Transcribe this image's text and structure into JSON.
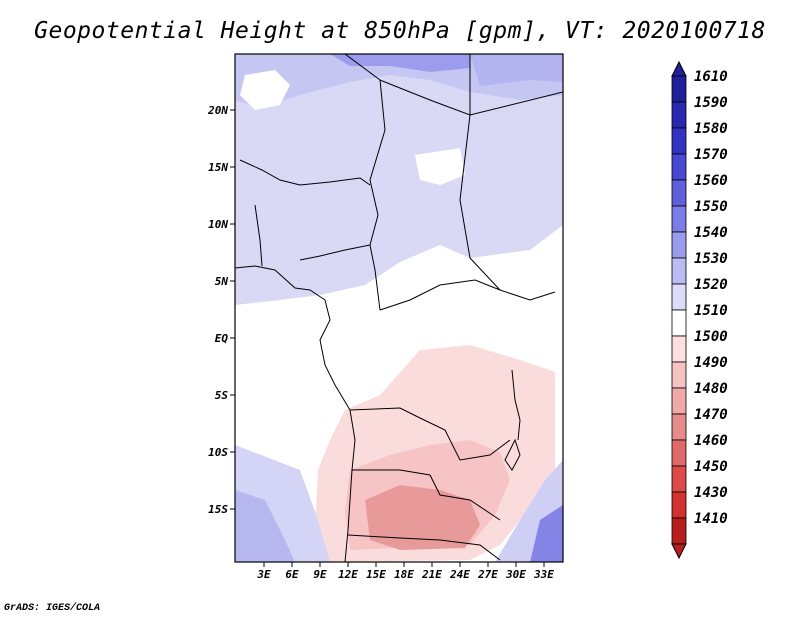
{
  "title": "Geopotential Height at 850hPa [gpm], VT: 2020100718",
  "footer": "GrADS: IGES/COLA",
  "map": {
    "lon_labels": [
      "3E",
      "6E",
      "9E",
      "12E",
      "15E",
      "18E",
      "21E",
      "24E",
      "27E",
      "30E",
      "33E"
    ],
    "lat_labels": [
      "20N",
      "15N",
      "10N",
      "5N",
      "EQ",
      "5S",
      "10S",
      "15S"
    ],
    "variable": "Geopotential Height",
    "level": "850hPa",
    "units": "gpm",
    "valid_time": "2020100718"
  },
  "colorbar": {
    "levels": [
      "1610",
      "1590",
      "1580",
      "1570",
      "1560",
      "1550",
      "1540",
      "1530",
      "1520",
      "1510",
      "1500",
      "1490",
      "1480",
      "1470",
      "1460",
      "1450",
      "1430",
      "1410"
    ],
    "colors": [
      "#20209a",
      "#2828b0",
      "#3434c4",
      "#4848d4",
      "#6060dc",
      "#7c7ce6",
      "#9c9cee",
      "#bcbcf4",
      "#dcdcfa",
      "#ffffff",
      "#fce0e0",
      "#f7c2c2",
      "#f0a8a8",
      "#e68a8a",
      "#e06a6a",
      "#dc4a4a",
      "#d43030",
      "#b81e1e"
    ]
  },
  "colors": {
    "background": "#ffffff",
    "land_low": "#fbdcdc",
    "land_mid": "#f0a8a8",
    "land_high": "#d9d9f6",
    "coast": "#000000"
  }
}
